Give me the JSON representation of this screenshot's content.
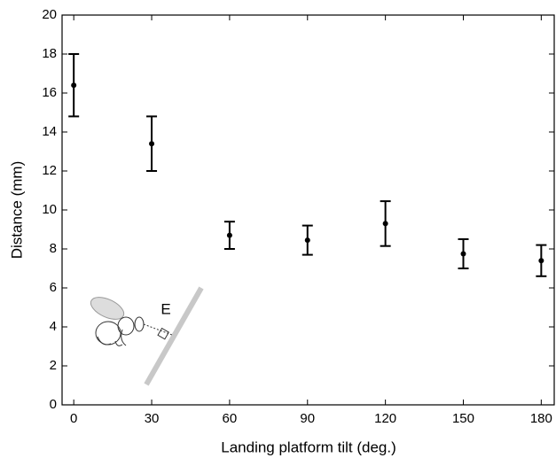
{
  "chart_data": {
    "type": "scatter",
    "x_label": "Landing platform tilt (deg.)",
    "y_label": "Distance (mm)",
    "annotation": "E",
    "x": [
      0,
      30,
      60,
      90,
      120,
      150,
      180
    ],
    "series": [
      {
        "color": "#000000",
        "values": [
          16.4,
          13.4,
          8.7,
          8.45,
          9.3,
          7.75,
          7.4
        ],
        "errors": [
          1.6,
          1.4,
          0.7,
          0.75,
          1.15,
          0.75,
          0.8
        ]
      }
    ],
    "xlim": [
      -4.5,
      185
    ],
    "ylim": [
      0,
      20
    ],
    "xticks": [
      0,
      30,
      60,
      90,
      120,
      150,
      180
    ],
    "yticks": [
      0,
      2,
      4,
      6,
      8,
      10,
      12,
      14,
      16,
      18,
      20
    ]
  }
}
